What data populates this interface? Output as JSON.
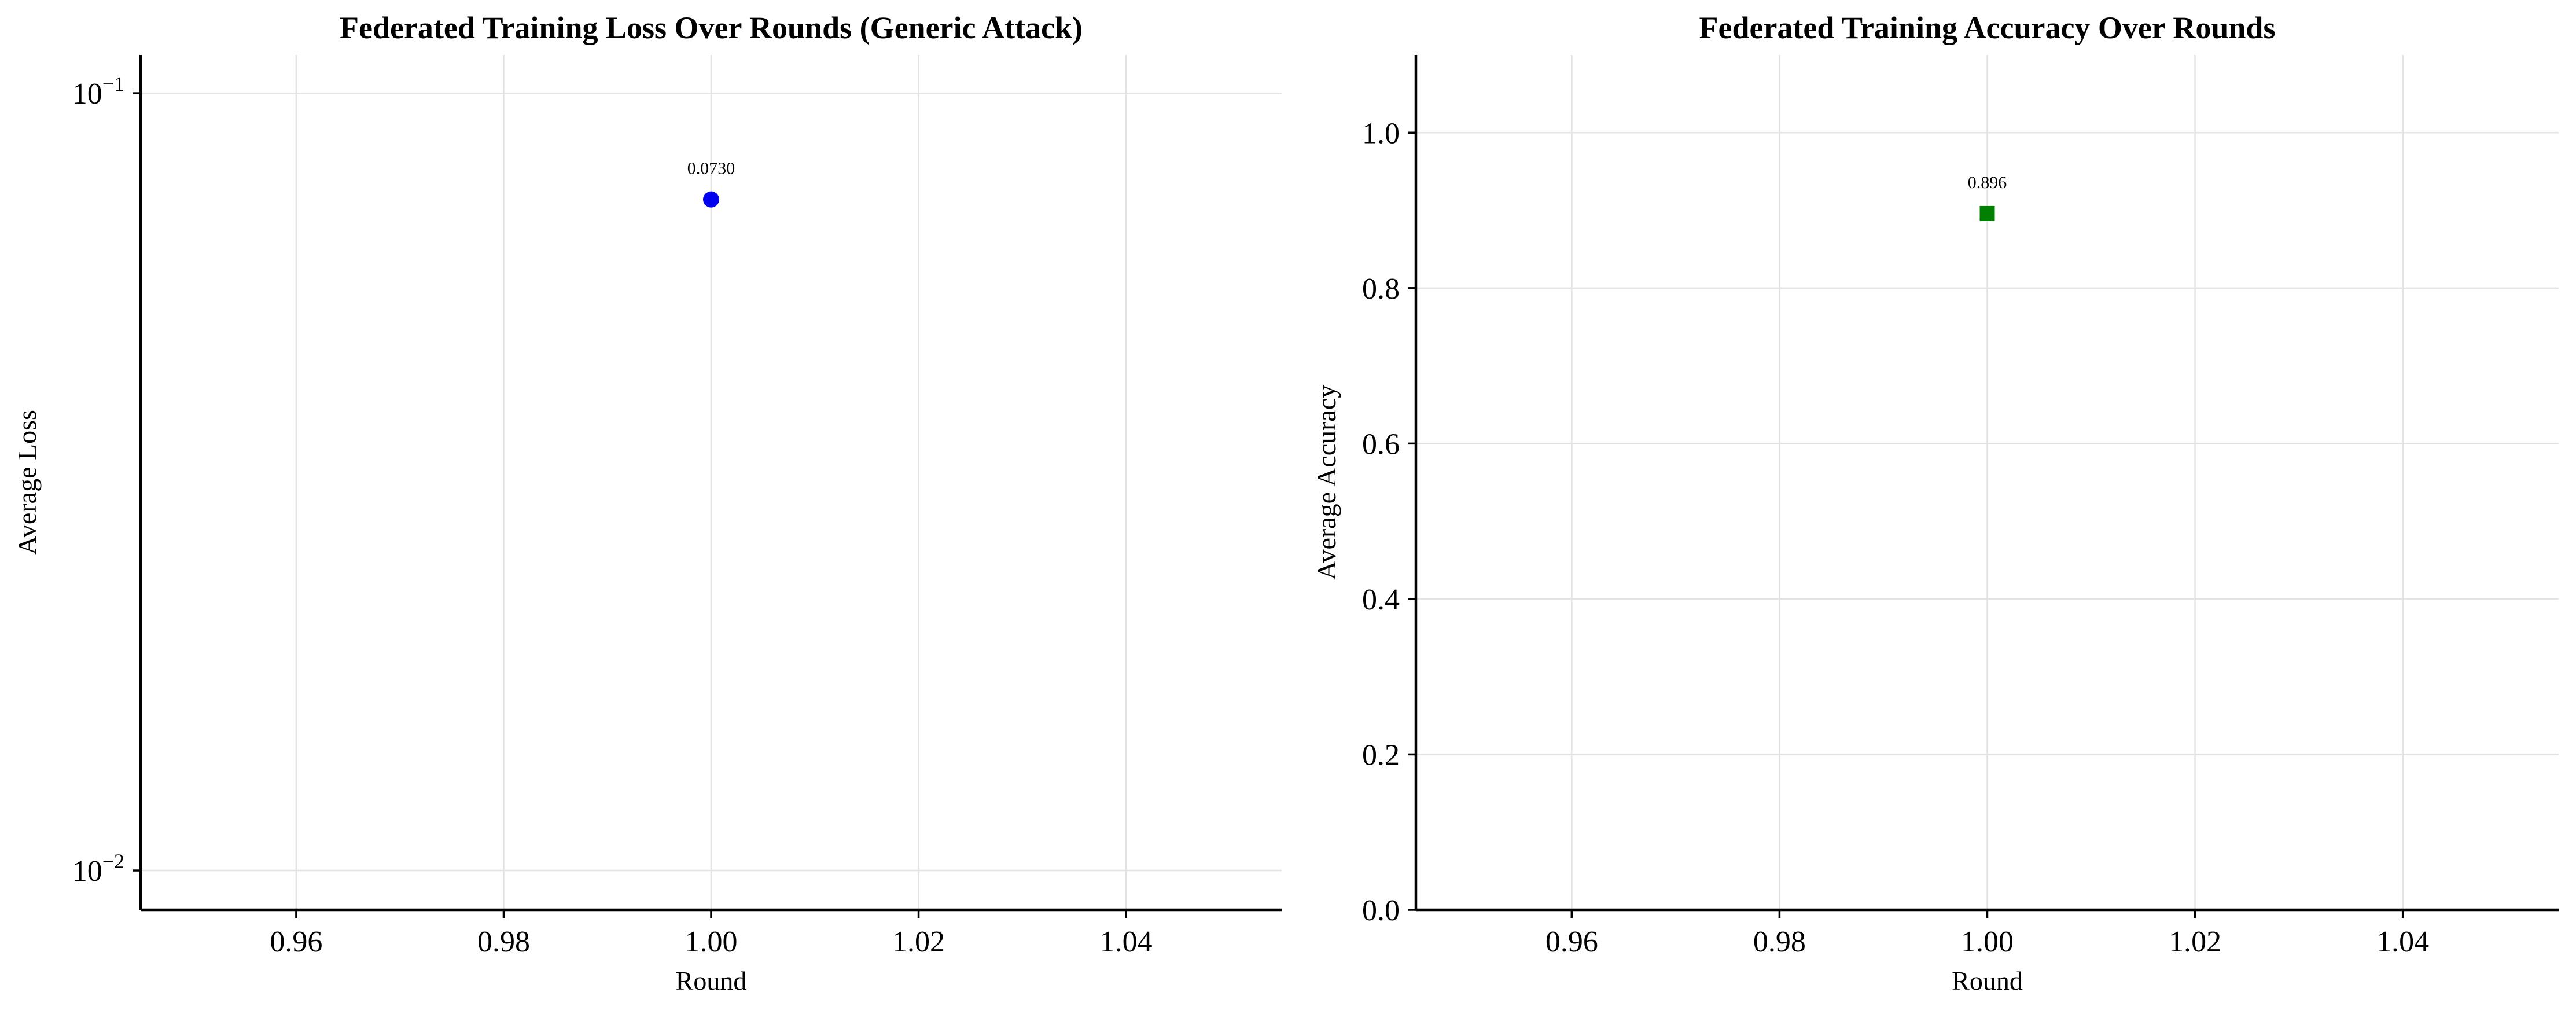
{
  "chart_data": [
    {
      "type": "scatter",
      "title": "Federated Training Loss Over Rounds (Generic Attack)",
      "xlabel": "Round",
      "ylabel": "Average Loss",
      "yscale": "log",
      "xlim": [
        0.945,
        1.055
      ],
      "ylim": [
        0.0089,
        0.112
      ],
      "xticks": [
        0.96,
        0.98,
        1.0,
        1.02,
        1.04
      ],
      "xtick_labels": [
        "0.96",
        "0.98",
        "1.00",
        "1.02",
        "1.04"
      ],
      "yticks": [
        0.01,
        0.1
      ],
      "ytick_labels": [
        {
          "base": "10",
          "exp": "−2"
        },
        {
          "base": "10",
          "exp": "−1"
        }
      ],
      "grid": true,
      "marker": "circle",
      "color": "#0000ee",
      "series": [
        {
          "x": [
            1.0
          ],
          "y": [
            0.073
          ],
          "labels": [
            "0.0730"
          ]
        }
      ]
    },
    {
      "type": "scatter",
      "title": "Federated Training Accuracy Over Rounds",
      "xlabel": "Round",
      "ylabel": "Average Accuracy",
      "yscale": "linear",
      "xlim": [
        0.945,
        1.055
      ],
      "ylim": [
        0.0,
        1.1
      ],
      "xticks": [
        0.96,
        0.98,
        1.0,
        1.02,
        1.04
      ],
      "xtick_labels": [
        "0.96",
        "0.98",
        "1.00",
        "1.02",
        "1.04"
      ],
      "yticks": [
        0.0,
        0.2,
        0.4,
        0.6,
        0.8,
        1.0
      ],
      "ytick_labels": [
        "0.0",
        "0.2",
        "0.4",
        "0.6",
        "0.8",
        "1.0"
      ],
      "grid": true,
      "marker": "square",
      "color": "#007f00",
      "series": [
        {
          "x": [
            1.0
          ],
          "y": [
            0.896
          ],
          "labels": [
            "0.896"
          ]
        }
      ]
    }
  ]
}
